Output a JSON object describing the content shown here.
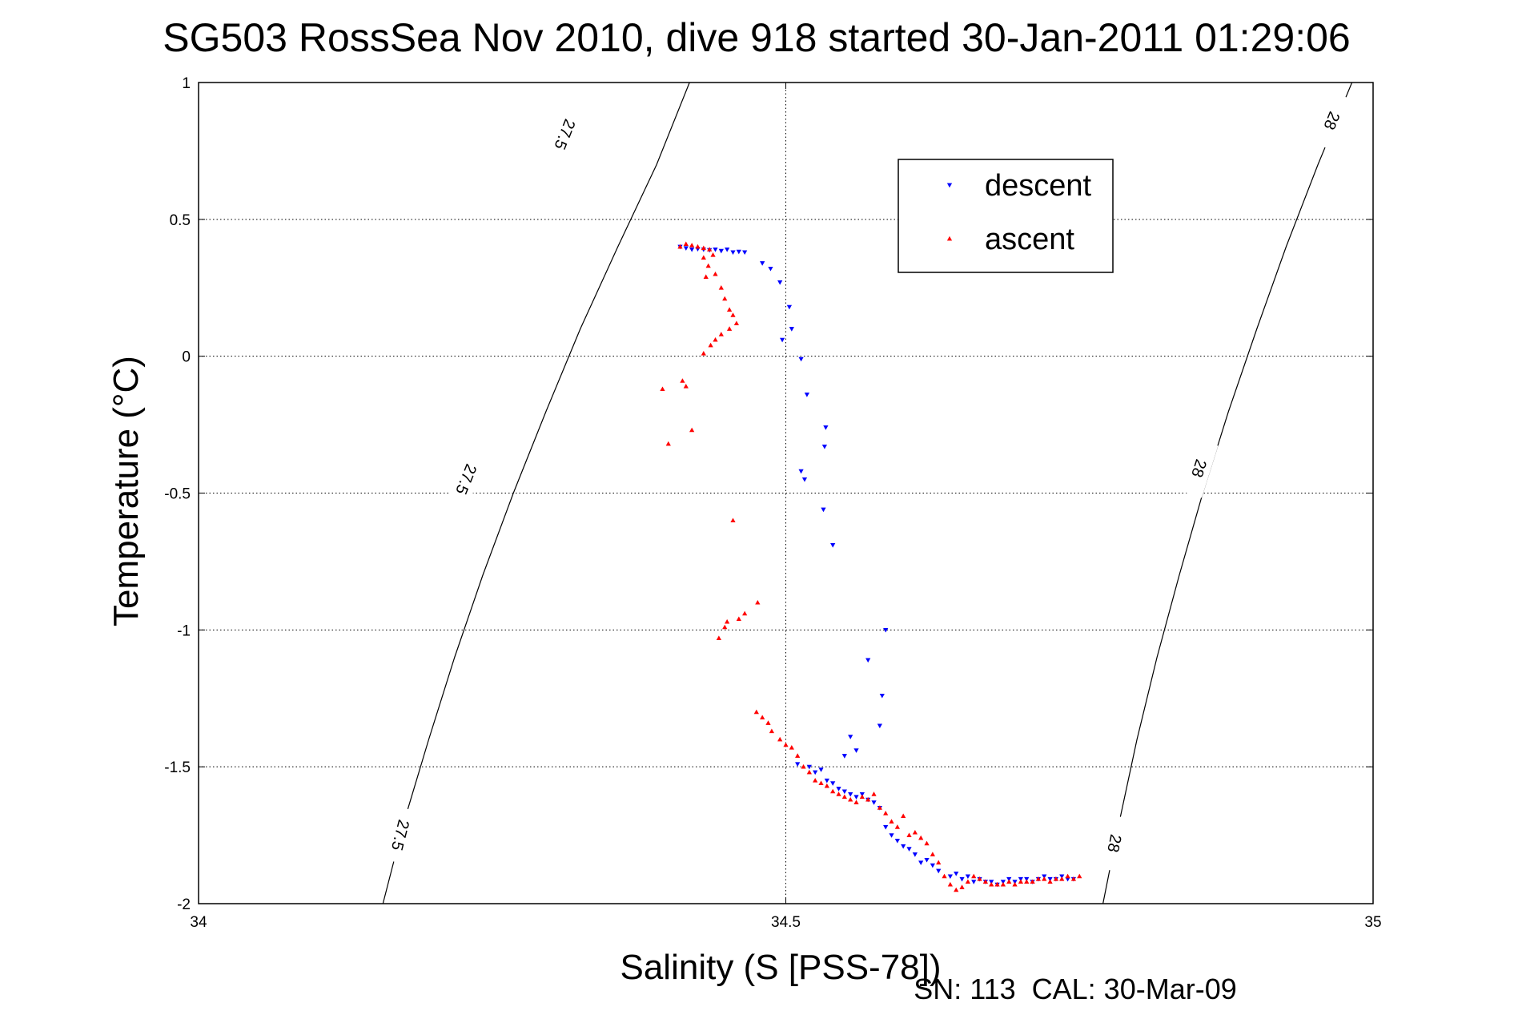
{
  "chart_data": {
    "type": "scatter",
    "title": "SG503 RossSea Nov 2010, dive 918 started 30-Jan-2011 01:29:06",
    "xlabel": "Salinity (S [PSS-78])",
    "ylabel": "Temperature (°C)",
    "footer": "SN: 113  CAL: 30-Mar-09",
    "xlim": [
      34,
      35
    ],
    "ylim": [
      -2,
      1
    ],
    "xticks": [
      34,
      34.5,
      35
    ],
    "xtick_labels": [
      "34",
      "34.5",
      "35"
    ],
    "yticks": [
      1,
      0.5,
      0,
      -0.5,
      -1,
      -1.5,
      -2
    ],
    "ytick_labels": [
      "1",
      "0.5",
      "0",
      "-0.5",
      "-1",
      "-1.5",
      "-2"
    ],
    "grid": true,
    "legend_position": "upper-right",
    "series": [
      {
        "name": "descent",
        "color": "#0000ff",
        "marker": "triangle-down",
        "points": [
          [
            34.41,
            0.4
          ],
          [
            34.415,
            0.395
          ],
          [
            34.42,
            0.39
          ],
          [
            34.425,
            0.392
          ],
          [
            34.43,
            0.39
          ],
          [
            34.435,
            0.388
          ],
          [
            34.44,
            0.39
          ],
          [
            34.445,
            0.385
          ],
          [
            34.45,
            0.39
          ],
          [
            34.455,
            0.38
          ],
          [
            34.46,
            0.382
          ],
          [
            34.465,
            0.38
          ],
          [
            34.48,
            0.34
          ],
          [
            34.487,
            0.32
          ],
          [
            34.495,
            0.27
          ],
          [
            34.503,
            0.18
          ],
          [
            34.497,
            0.06
          ],
          [
            34.505,
            0.1
          ],
          [
            34.513,
            -0.01
          ],
          [
            34.518,
            -0.14
          ],
          [
            34.534,
            -0.26
          ],
          [
            34.533,
            -0.33
          ],
          [
            34.513,
            -0.42
          ],
          [
            34.516,
            -0.45
          ],
          [
            34.532,
            -0.56
          ],
          [
            34.54,
            -0.69
          ],
          [
            34.585,
            -1.0
          ],
          [
            34.57,
            -1.11
          ],
          [
            34.582,
            -1.24
          ],
          [
            34.58,
            -1.35
          ],
          [
            34.555,
            -1.39
          ],
          [
            34.56,
            -1.44
          ],
          [
            34.55,
            -1.46
          ],
          [
            34.51,
            -1.49
          ],
          [
            34.52,
            -1.5
          ],
          [
            34.525,
            -1.52
          ],
          [
            34.53,
            -1.51
          ],
          [
            34.535,
            -1.55
          ],
          [
            34.54,
            -1.56
          ],
          [
            34.545,
            -1.58
          ],
          [
            34.55,
            -1.59
          ],
          [
            34.555,
            -1.6
          ],
          [
            34.56,
            -1.61
          ],
          [
            34.565,
            -1.6
          ],
          [
            34.57,
            -1.62
          ],
          [
            34.575,
            -1.63
          ],
          [
            34.58,
            -1.65
          ],
          [
            34.585,
            -1.72
          ],
          [
            34.59,
            -1.75
          ],
          [
            34.595,
            -1.77
          ],
          [
            34.6,
            -1.79
          ],
          [
            34.605,
            -1.8
          ],
          [
            34.61,
            -1.82
          ],
          [
            34.615,
            -1.85
          ],
          [
            34.62,
            -1.84
          ],
          [
            34.625,
            -1.86
          ],
          [
            34.63,
            -1.88
          ],
          [
            34.64,
            -1.9
          ],
          [
            34.645,
            -1.89
          ],
          [
            34.65,
            -1.91
          ],
          [
            34.655,
            -1.9
          ],
          [
            34.66,
            -1.92
          ],
          [
            34.665,
            -1.91
          ],
          [
            34.67,
            -1.92
          ],
          [
            34.675,
            -1.92
          ],
          [
            34.68,
            -1.93
          ],
          [
            34.685,
            -1.92
          ],
          [
            34.69,
            -1.91
          ],
          [
            34.695,
            -1.92
          ],
          [
            34.7,
            -1.91
          ],
          [
            34.705,
            -1.91
          ],
          [
            34.71,
            -1.92
          ],
          [
            34.715,
            -1.91
          ],
          [
            34.72,
            -1.9
          ],
          [
            34.725,
            -1.91
          ],
          [
            34.73,
            -1.91
          ],
          [
            34.735,
            -1.9
          ],
          [
            34.74,
            -1.91
          ],
          [
            34.745,
            -1.91
          ]
        ]
      },
      {
        "name": "ascent",
        "color": "#ff0000",
        "marker": "triangle-up",
        "points": [
          [
            34.41,
            0.4
          ],
          [
            34.415,
            0.41
          ],
          [
            34.42,
            0.405
          ],
          [
            34.425,
            0.4
          ],
          [
            34.43,
            0.395
          ],
          [
            34.435,
            0.39
          ],
          [
            34.438,
            0.37
          ],
          [
            34.43,
            0.36
          ],
          [
            34.434,
            0.33
          ],
          [
            34.44,
            0.3
          ],
          [
            34.432,
            0.29
          ],
          [
            34.445,
            0.25
          ],
          [
            34.448,
            0.21
          ],
          [
            34.452,
            0.17
          ],
          [
            34.455,
            0.15
          ],
          [
            34.458,
            0.12
          ],
          [
            34.452,
            0.1
          ],
          [
            34.445,
            0.08
          ],
          [
            34.44,
            0.06
          ],
          [
            34.436,
            0.04
          ],
          [
            34.43,
            0.01
          ],
          [
            34.415,
            -0.11
          ],
          [
            34.412,
            -0.09
          ],
          [
            34.395,
            -0.12
          ],
          [
            34.42,
            -0.27
          ],
          [
            34.4,
            -0.32
          ],
          [
            34.455,
            -0.6
          ],
          [
            34.465,
            -0.94
          ],
          [
            34.46,
            -0.96
          ],
          [
            34.45,
            -0.97
          ],
          [
            34.448,
            -0.99
          ],
          [
            34.443,
            -1.03
          ],
          [
            34.476,
            -0.9
          ],
          [
            34.475,
            -1.3
          ],
          [
            34.48,
            -1.32
          ],
          [
            34.485,
            -1.34
          ],
          [
            34.488,
            -1.37
          ],
          [
            34.495,
            -1.4
          ],
          [
            34.5,
            -1.42
          ],
          [
            34.505,
            -1.43
          ],
          [
            34.51,
            -1.46
          ],
          [
            34.515,
            -1.5
          ],
          [
            34.52,
            -1.52
          ],
          [
            34.525,
            -1.55
          ],
          [
            34.53,
            -1.56
          ],
          [
            34.535,
            -1.57
          ],
          [
            34.54,
            -1.59
          ],
          [
            34.545,
            -1.6
          ],
          [
            34.55,
            -1.61
          ],
          [
            34.555,
            -1.62
          ],
          [
            34.56,
            -1.63
          ],
          [
            34.565,
            -1.61
          ],
          [
            34.57,
            -1.62
          ],
          [
            34.575,
            -1.6
          ],
          [
            34.58,
            -1.65
          ],
          [
            34.585,
            -1.67
          ],
          [
            34.59,
            -1.7
          ],
          [
            34.595,
            -1.72
          ],
          [
            34.6,
            -1.68
          ],
          [
            34.605,
            -1.75
          ],
          [
            34.61,
            -1.74
          ],
          [
            34.615,
            -1.76
          ],
          [
            34.62,
            -1.78
          ],
          [
            34.625,
            -1.82
          ],
          [
            34.63,
            -1.85
          ],
          [
            34.635,
            -1.9
          ],
          [
            34.64,
            -1.93
          ],
          [
            34.645,
            -1.95
          ],
          [
            34.65,
            -1.94
          ],
          [
            34.655,
            -1.92
          ],
          [
            34.66,
            -1.9
          ],
          [
            34.665,
            -1.91
          ],
          [
            34.67,
            -1.92
          ],
          [
            34.675,
            -1.93
          ],
          [
            34.68,
            -1.93
          ],
          [
            34.685,
            -1.93
          ],
          [
            34.69,
            -1.92
          ],
          [
            34.695,
            -1.93
          ],
          [
            34.7,
            -1.92
          ],
          [
            34.705,
            -1.92
          ],
          [
            34.71,
            -1.92
          ],
          [
            34.715,
            -1.91
          ],
          [
            34.72,
            -1.91
          ],
          [
            34.725,
            -1.92
          ],
          [
            34.73,
            -1.91
          ],
          [
            34.735,
            -1.91
          ],
          [
            34.74,
            -1.9
          ],
          [
            34.745,
            -1.91
          ],
          [
            34.75,
            -1.9
          ]
        ]
      }
    ],
    "contours": [
      {
        "label": "27.5",
        "points": [
          [
            34.157,
            -2
          ],
          [
            34.175,
            -1.7
          ],
          [
            34.196,
            -1.4
          ],
          [
            34.218,
            -1.1
          ],
          [
            34.242,
            -0.8
          ],
          [
            34.268,
            -0.5
          ],
          [
            34.296,
            -0.2
          ],
          [
            34.325,
            0.1
          ],
          [
            34.357,
            0.4
          ],
          [
            34.39,
            0.7
          ],
          [
            34.418,
            1.0
          ]
        ],
        "labels_at": [
          [
            34.172,
            -1.75
          ],
          [
            34.228,
            -0.45
          ],
          [
            34.312,
            0.81
          ]
        ]
      },
      {
        "label": "28",
        "points": [
          [
            34.77,
            -2
          ],
          [
            34.784,
            -1.7
          ],
          [
            34.799,
            -1.4
          ],
          [
            34.816,
            -1.1
          ],
          [
            34.835,
            -0.8
          ],
          [
            34.855,
            -0.5
          ],
          [
            34.877,
            -0.2
          ],
          [
            34.901,
            0.1
          ],
          [
            34.926,
            0.4
          ],
          [
            34.953,
            0.7
          ],
          [
            34.982,
            1.0
          ]
        ],
        "labels_at": [
          [
            34.78,
            -1.78
          ],
          [
            34.852,
            -0.41
          ],
          [
            34.965,
            0.86
          ]
        ]
      }
    ]
  }
}
